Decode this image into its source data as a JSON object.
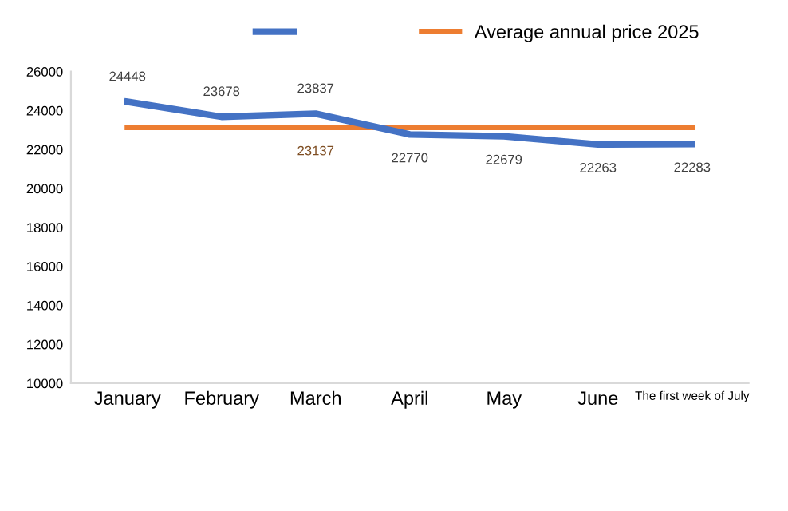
{
  "chart_data": {
    "type": "line",
    "categories": [
      "January",
      "February",
      "March",
      "April",
      "May",
      "June",
      "The first week of July"
    ],
    "series": [
      {
        "color": "#4472c4",
        "values": [
          24448,
          23678,
          23837,
          22770,
          22679,
          22263,
          22283
        ],
        "value_labels": [
          "24448",
          "23678",
          "23837",
          "22770",
          "22679",
          "22263",
          "22283"
        ]
      },
      {
        "name": "Average annual price 2025",
        "color": "#ed7d31",
        "values": [
          23137,
          23137,
          23137,
          23137,
          23137,
          23137,
          23137
        ],
        "value_labels": [
          null,
          null,
          "23137",
          null,
          null,
          null,
          null
        ]
      }
    ],
    "ylim": [
      10000,
      26000
    ],
    "yticks": [
      10000,
      12000,
      14000,
      16000,
      18000,
      20000,
      22000,
      24000,
      26000
    ],
    "legend": "top",
    "grid": false,
    "marker": "none",
    "line_style": "solid"
  }
}
